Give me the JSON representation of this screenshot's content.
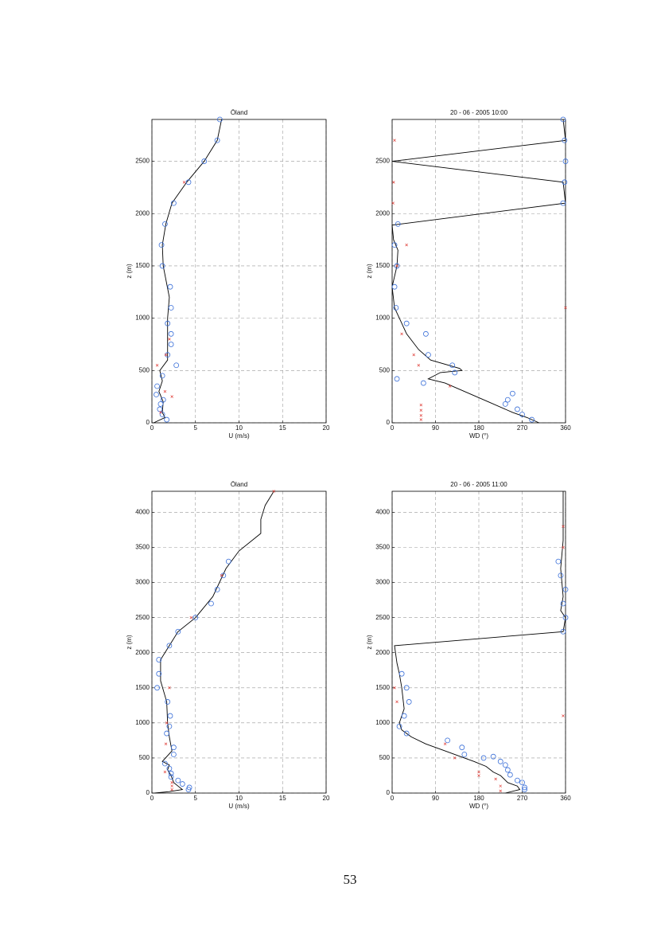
{
  "chart_data": [
    {
      "type": "line",
      "title": "Öland",
      "xlabel": "U  (m/s)",
      "ylabel": "z  (m)",
      "xlim": [
        0,
        20
      ],
      "xticks": [
        0,
        5,
        10,
        15,
        20
      ],
      "ylim": [
        0,
        2900
      ],
      "yticks": [
        0,
        500,
        1000,
        1500,
        2000,
        2500
      ],
      "grid": true,
      "series": [
        {
          "style": "line",
          "color": "#000000",
          "x": [
            0.2,
            1.5,
            1.2,
            1.3,
            0.8,
            1.2,
            0.9,
            1.8,
            1.8,
            1.8,
            2.0,
            1.3,
            1.2,
            1.6,
            2.3,
            4,
            6,
            7.5,
            8
          ],
          "y": [
            0,
            50,
            100,
            200,
            300,
            400,
            500,
            600,
            800,
            1000,
            1200,
            1500,
            1700,
            1900,
            2100,
            2300,
            2500,
            2700,
            2900
          ]
        },
        {
          "style": "circle",
          "color": "#3a6fd8",
          "x": [
            7.8,
            7.5,
            6,
            4.2,
            2.5,
            1.5,
            1.1,
            1.2,
            2.1,
            2.2,
            1.8,
            2.2,
            2.2,
            1.8,
            2.8,
            1.2,
            0.6,
            0.5,
            1.3,
            1.0,
            0.9,
            1.2,
            1.7
          ],
          "y": [
            2900,
            2700,
            2500,
            2300,
            2100,
            1900,
            1700,
            1500,
            1300,
            1100,
            950,
            850,
            750,
            650,
            550,
            450,
            350,
            270,
            220,
            180,
            130,
            80,
            30
          ]
        },
        {
          "style": "cross",
          "color": "#e0403a",
          "x": [
            0.6,
            1.6,
            2.0,
            2.3,
            1.5,
            1.0,
            3.7
          ],
          "y": [
            550,
            650,
            800,
            250,
            300,
            100,
            2300
          ]
        }
      ]
    },
    {
      "type": "line",
      "title": "20 - 06 - 2005        10:00",
      "xlabel": "WD (°)",
      "ylabel": "z  (m)",
      "xlim": [
        0,
        360
      ],
      "xticks": [
        0,
        90,
        180,
        270,
        360
      ],
      "ylim": [
        0,
        2900
      ],
      "yticks": [
        0,
        500,
        1000,
        1500,
        2000,
        2500
      ],
      "grid": true,
      "series": [
        {
          "style": "line",
          "color": "#000000",
          "x": [
            305,
            280,
            250,
            200,
            150,
            110,
            75,
            100,
            145,
            140,
            80,
            55,
            30,
            15,
            5,
            0,
            10,
            12,
            3,
            0,
            360,
            355,
            0,
            360,
            355
          ],
          "y": [
            0,
            50,
            100,
            200,
            300,
            380,
            420,
            480,
            500,
            520,
            600,
            700,
            850,
            1000,
            1100,
            1300,
            1500,
            1650,
            1750,
            1890,
            2100,
            2300,
            2500,
            2700,
            2900
          ]
        },
        {
          "style": "circle",
          "color": "#3a6fd8",
          "x": [
            355,
            358,
            360,
            358,
            355,
            12,
            5,
            10,
            5,
            8,
            30,
            70,
            75,
            65,
            10,
            125,
            130,
            240,
            250,
            235,
            260,
            270,
            290
          ],
          "y": [
            2900,
            2700,
            2500,
            2300,
            2100,
            1900,
            1700,
            1500,
            1300,
            1100,
            950,
            850,
            650,
            380,
            420,
            550,
            480,
            220,
            280,
            180,
            130,
            80,
            30
          ]
        },
        {
          "style": "cross",
          "color": "#e0403a",
          "x": [
            60,
            60,
            60,
            60,
            55,
            45,
            20,
            120,
            5,
            3,
            2,
            360,
            30,
            10
          ],
          "y": [
            170,
            120,
            70,
            30,
            550,
            650,
            850,
            350,
            2700,
            2300,
            2100,
            1100,
            1700,
            1500
          ]
        }
      ]
    },
    {
      "type": "line",
      "title": "Öland",
      "xlabel": "U  (m/s)",
      "ylabel": "z  (m)",
      "xlim": [
        0,
        20
      ],
      "xticks": [
        0,
        5,
        10,
        15,
        20
      ],
      "ylim": [
        0,
        4300
      ],
      "yticks": [
        0,
        500,
        1000,
        1500,
        2000,
        2500,
        3000,
        3500,
        4000
      ],
      "grid": true,
      "series": [
        {
          "style": "line",
          "color": "#000000",
          "x": [
            0.3,
            2,
            3.5,
            3.0,
            2.5,
            2.2,
            1.8,
            2.0,
            1.2,
            2.3,
            2.0,
            1.8,
            1.7,
            1.0,
            1.0,
            2,
            3,
            5,
            7,
            8.5,
            10,
            12.5,
            12.5,
            13,
            14
          ],
          "y": [
            0,
            20,
            50,
            100,
            150,
            250,
            330,
            400,
            450,
            600,
            800,
            1000,
            1300,
            1600,
            1900,
            2100,
            2300,
            2500,
            2800,
            3200,
            3450,
            3700,
            3900,
            4100,
            4300
          ]
        },
        {
          "style": "circle",
          "color": "#3a6fd8",
          "x": [
            4.2,
            4.3,
            3.5,
            3.0,
            2.2,
            2.2,
            2.0,
            1.5,
            2.5,
            2.5,
            1.7,
            2.0,
            2.1,
            1.8,
            0.6,
            0.8,
            0.8,
            2.0,
            3.0,
            5.0,
            6.8,
            7.5,
            8.2,
            8.8
          ],
          "y": [
            50,
            80,
            130,
            180,
            230,
            280,
            350,
            420,
            550,
            650,
            850,
            950,
            1100,
            1300,
            1500,
            1700,
            1900,
            2100,
            2300,
            2500,
            2700,
            2900,
            3100,
            3300
          ]
        },
        {
          "style": "cross",
          "color": "#e0403a",
          "x": [
            2.3,
            2.3,
            2.3,
            1.5,
            1.6,
            1.7,
            2.0,
            4.5,
            8.0,
            14.0
          ],
          "y": [
            50,
            100,
            150,
            300,
            700,
            1000,
            1500,
            2500,
            3100,
            4300
          ]
        }
      ]
    },
    {
      "type": "line",
      "title": "20 - 06 - 2005        11:00",
      "xlabel": "WD (°)",
      "ylabel": "z  (m)",
      "xlim": [
        0,
        360
      ],
      "xticks": [
        0,
        90,
        180,
        270,
        360
      ],
      "ylim": [
        0,
        4300
      ],
      "yticks": [
        0,
        500,
        1000,
        1500,
        2000,
        2500,
        3000,
        3500,
        4000
      ],
      "grid": true,
      "series": [
        {
          "style": "line",
          "color": "#000000",
          "x": [
            235,
            265,
            260,
            240,
            225,
            210,
            195,
            170,
            150,
            110,
            70,
            40,
            20,
            15,
            25,
            20,
            15,
            10,
            5,
            355,
            360,
            350,
            355,
            350,
            355,
            355
          ],
          "y": [
            0,
            50,
            100,
            150,
            250,
            300,
            380,
            450,
            500,
            600,
            700,
            800,
            900,
            1000,
            1200,
            1500,
            1700,
            1850,
            2100,
            2300,
            2500,
            2600,
            2800,
            3200,
            3600,
            4300
          ]
        },
        {
          "style": "circle",
          "color": "#3a6fd8",
          "x": [
            275,
            275,
            270,
            260,
            245,
            240,
            235,
            225,
            210,
            190,
            150,
            145,
            115,
            30,
            15,
            25,
            35,
            30,
            20,
            355,
            360,
            355,
            360,
            350,
            345
          ],
          "y": [
            50,
            80,
            150,
            180,
            260,
            330,
            400,
            450,
            520,
            500,
            550,
            650,
            750,
            850,
            950,
            1100,
            1300,
            1500,
            1700,
            2300,
            2500,
            2700,
            2900,
            3100,
            3300
          ]
        },
        {
          "style": "cross",
          "color": "#e0403a",
          "x": [
            225,
            225,
            215,
            180,
            180,
            130,
            110,
            10,
            5,
            355,
            355,
            355
          ],
          "y": [
            30,
            100,
            200,
            250,
            300,
            500,
            700,
            1300,
            1500,
            1100,
            3500,
            3800
          ]
        }
      ]
    }
  ],
  "page_number": "53"
}
